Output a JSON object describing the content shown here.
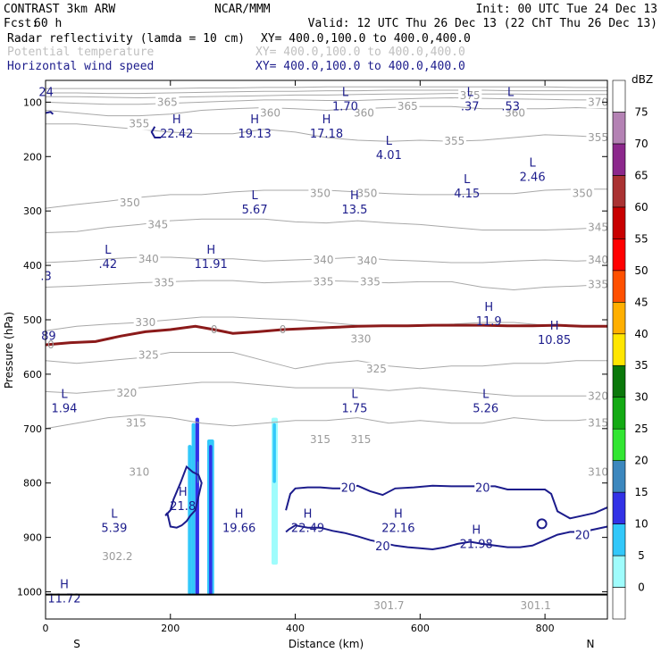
{
  "header": {
    "model": "CONTRAST  3km ARW",
    "org": "NCAR/MMM",
    "init": "Init: 00 UTC Tue 24 Dec 13",
    "fcst_label": "Fcst:",
    "fcst_value": "60 h",
    "valid": "Valid: 12 UTC Thu 26 Dec 13 (22 ChT Thu 26 Dec 13)",
    "fields": [
      {
        "name": "Radar reflectivity (lamda = 10 cm)",
        "xy": "XY= 400.0,100.0 to 400.0,400.0",
        "color": "#000000"
      },
      {
        "name": "Potential temperature",
        "xy": "XY= 400.0,100.0 to 400.0,400.0",
        "color": "#c0c0c0"
      },
      {
        "name": "Horizontal wind speed",
        "xy": "XY= 400.0,100.0 to 400.0,400.0",
        "color": "#1c1c8c"
      }
    ]
  },
  "chart_data": {
    "type": "cross-section",
    "xlabel": "Distance (km)",
    "ylabel": "Pressure (hPa)",
    "xlim": [
      0,
      900
    ],
    "ylim": [
      1050,
      60
    ],
    "x_ticks": [
      0,
      200,
      400,
      600,
      800
    ],
    "y_ticks": [
      100,
      200,
      300,
      400,
      500,
      600,
      700,
      800,
      900,
      1000
    ],
    "end_labels": {
      "left": "S",
      "right": "N"
    },
    "theta_contours": [
      {
        "value": 315,
        "p": [
          700,
          690,
          680,
          675,
          680,
          690,
          695,
          690,
          685,
          685,
          680,
          690,
          685,
          690,
          690,
          680,
          685,
          685,
          680
        ]
      },
      {
        "value": 320,
        "p": [
          632,
          635,
          630,
          625,
          620,
          615,
          615,
          620,
          625,
          625,
          625,
          630,
          625,
          630,
          635,
          640,
          640,
          640,
          640
        ]
      },
      {
        "value": 325,
        "p": [
          575,
          580,
          575,
          570,
          560,
          560,
          560,
          575,
          590,
          580,
          575,
          585,
          590,
          585,
          585,
          580,
          580,
          575,
          575
        ]
      },
      {
        "value": 330,
        "p": [
          520,
          512,
          508,
          505,
          500,
          495,
          495,
          498,
          500,
          505,
          510,
          512,
          510,
          508,
          505,
          505,
          510,
          512,
          512
        ]
      },
      {
        "value": 335,
        "p": [
          440,
          438,
          435,
          432,
          430,
          428,
          428,
          432,
          430,
          428,
          430,
          432,
          430,
          430,
          440,
          445,
          440,
          438,
          435
        ]
      },
      {
        "value": 340,
        "p": [
          395,
          392,
          388,
          385,
          385,
          388,
          388,
          392,
          390,
          388,
          385,
          390,
          392,
          395,
          395,
          392,
          390,
          392,
          390
        ]
      },
      {
        "value": 345,
        "p": [
          340,
          338,
          330,
          325,
          318,
          315,
          315,
          315,
          320,
          322,
          318,
          322,
          325,
          330,
          335,
          335,
          335,
          333,
          330
        ]
      },
      {
        "value": 350,
        "p": [
          295,
          288,
          282,
          275,
          270,
          270,
          265,
          262,
          262,
          262,
          265,
          268,
          270,
          270,
          268,
          268,
          262,
          260,
          260
        ]
      },
      {
        "value": 355,
        "p": [
          140,
          140,
          145,
          150,
          155,
          158,
          158,
          150,
          155,
          165,
          170,
          172,
          170,
          172,
          170,
          165,
          160,
          162,
          165
        ]
      },
      {
        "value": 360,
        "p": [
          115,
          120,
          125,
          125,
          122,
          115,
          112,
          110,
          112,
          115,
          112,
          110,
          108,
          108,
          112,
          112,
          112,
          110,
          112
        ]
      },
      {
        "value": 365,
        "p": [
          100,
          102,
          104,
          104,
          102,
          100,
          98,
          96,
          96,
          97,
          97,
          95,
          93,
          92,
          93,
          94,
          95,
          96,
          96
        ]
      },
      {
        "value": 370,
        "p": [
          90,
          90,
          91,
          92,
          91,
          90,
          89,
          88,
          87,
          87,
          86,
          85,
          85,
          84,
          85,
          85,
          86,
          86,
          86
        ]
      },
      {
        "value": 375,
        "p": [
          83,
          83,
          84,
          84,
          83,
          82,
          81,
          80,
          80,
          79,
          79,
          78,
          78,
          78,
          78,
          79,
          79,
          79,
          79
        ]
      },
      {
        "value": 380,
        "p": [
          75,
          75,
          75,
          75,
          75,
          74,
          74,
          73,
          73,
          72,
          72,
          72,
          72,
          72,
          72,
          72,
          72,
          73,
          73
        ]
      }
    ],
    "theta_labels": [
      {
        "text": "365",
        "x": 195,
        "p": 100
      },
      {
        "text": "360",
        "x": 360,
        "p": 120
      },
      {
        "text": "360",
        "x": 510,
        "p": 120
      },
      {
        "text": "365",
        "x": 580,
        "p": 108
      },
      {
        "text": "375",
        "x": 680,
        "p": 88
      },
      {
        "text": "360",
        "x": 752,
        "p": 120
      },
      {
        "text": "370",
        "x": 885,
        "p": 100
      },
      {
        "text": "355",
        "x": 150,
        "p": 140
      },
      {
        "text": "355",
        "x": 655,
        "p": 172
      },
      {
        "text": "355",
        "x": 885,
        "p": 165
      },
      {
        "text": "350",
        "x": 135,
        "p": 285
      },
      {
        "text": "350",
        "x": 440,
        "p": 268
      },
      {
        "text": "350",
        "x": 515,
        "p": 268
      },
      {
        "text": "350",
        "x": 860,
        "p": 268
      },
      {
        "text": "345",
        "x": 180,
        "p": 325
      },
      {
        "text": "345",
        "x": 885,
        "p": 330
      },
      {
        "text": "340",
        "x": 165,
        "p": 388
      },
      {
        "text": "340",
        "x": 445,
        "p": 390
      },
      {
        "text": "340",
        "x": 515,
        "p": 392
      },
      {
        "text": "340",
        "x": 885,
        "p": 390
      },
      {
        "text": "335",
        "x": 190,
        "p": 432
      },
      {
        "text": "335",
        "x": 445,
        "p": 430
      },
      {
        "text": "335",
        "x": 520,
        "p": 430
      },
      {
        "text": "335",
        "x": 885,
        "p": 435
      },
      {
        "text": "330",
        "x": 160,
        "p": 505
      },
      {
        "text": "330",
        "x": 505,
        "p": 535
      },
      {
        "text": "325",
        "x": 165,
        "p": 565
      },
      {
        "text": "325",
        "x": 530,
        "p": 590
      },
      {
        "text": "320",
        "x": 130,
        "p": 635
      },
      {
        "text": "320",
        "x": 885,
        "p": 640
      },
      {
        "text": "315",
        "x": 145,
        "p": 690
      },
      {
        "text": "315",
        "x": 440,
        "p": 720
      },
      {
        "text": "315",
        "x": 505,
        "p": 720
      },
      {
        "text": "315",
        "x": 885,
        "p": 690
      },
      {
        "text": "310",
        "x": 150,
        "p": 780
      },
      {
        "text": "310",
        "x": 885,
        "p": 780
      },
      {
        "text": "302.2",
        "x": 115,
        "p": 935
      },
      {
        "text": "301.7",
        "x": 550,
        "p": 1025
      },
      {
        "text": "301.1",
        "x": 785,
        "p": 1025
      }
    ],
    "tropopause_line": {
      "color": "#8b1a1a",
      "label": "0",
      "x": [
        0,
        40,
        80,
        120,
        160,
        200,
        240,
        270,
        300,
        340,
        380,
        420,
        460,
        500,
        540,
        580,
        620,
        660,
        700,
        740,
        780,
        820,
        860,
        900
      ],
      "p": [
        546,
        542,
        540,
        530,
        522,
        518,
        512,
        518,
        525,
        522,
        518,
        516,
        514,
        512,
        511,
        511,
        510,
        510,
        510,
        511,
        511,
        510,
        512,
        512
      ]
    },
    "wind_20_contour": {
      "color": "#1c1c8c",
      "label": "20",
      "segments": [
        {
          "x": [
            195,
            200,
            210,
            218,
            226,
            232,
            240,
            246,
            250,
            245,
            236,
            226,
            216,
            205,
            200,
            192,
            195
          ],
          "p": [
            855,
            880,
            882,
            878,
            870,
            860,
            850,
            820,
            800,
            785,
            780,
            770,
            800,
            830,
            850,
            860,
            855
          ]
        },
        {
          "x": [
            385,
            392,
            400,
            420,
            440,
            460,
            480,
            500,
            520,
            540,
            560,
            590,
            620,
            650,
            680,
            700,
            720,
            740,
            760,
            780,
            800,
            810,
            820,
            840,
            860,
            880,
            900
          ],
          "p": [
            850,
            820,
            810,
            808,
            808,
            810,
            810,
            805,
            815,
            822,
            810,
            808,
            805,
            806,
            806,
            806,
            806,
            812,
            812,
            812,
            812,
            820,
            852,
            865,
            860,
            855,
            845
          ]
        },
        {
          "x": [
            385,
            390,
            400,
            420,
            440,
            460,
            480,
            500,
            520,
            540,
            560,
            580,
            600,
            620,
            640,
            660,
            680,
            700,
            720,
            740,
            760,
            780,
            800,
            820,
            840,
            860,
            880,
            900
          ],
          "p": [
            890,
            885,
            878,
            882,
            882,
            888,
            892,
            898,
            905,
            910,
            915,
            918,
            920,
            922,
            918,
            912,
            908,
            912,
            915,
            918,
            918,
            915,
            905,
            895,
            890,
            890,
            885,
            880
          ]
        }
      ],
      "labels": [
        {
          "text": "20",
          "x": 485,
          "p": 808
        },
        {
          "text": "20",
          "x": 700,
          "p": 808
        },
        {
          "text": "20",
          "x": 540,
          "p": 915
        },
        {
          "text": "20",
          "x": 860,
          "p": 895
        }
      ]
    },
    "extrema": [
      {
        "type": "H",
        "value": "22.42",
        "x": 210,
        "p": 145
      },
      {
        "type": "H",
        "value": "19.13",
        "x": 335,
        "p": 145
      },
      {
        "type": "H",
        "value": "17.18",
        "x": 450,
        "p": 145
      },
      {
        "type": "L",
        "value": "1.70",
        "x": 480,
        "p": 95
      },
      {
        "type": "L",
        "value": ".37",
        "x": 680,
        "p": 95
      },
      {
        "type": "L",
        "value": ".53",
        "x": 745,
        "p": 95
      },
      {
        "type": "L",
        "value": "4.01",
        "x": 550,
        "p": 185
      },
      {
        "type": "L",
        "value": "4.15",
        "x": 675,
        "p": 255
      },
      {
        "type": "L",
        "value": "2.46",
        "x": 780,
        "p": 225
      },
      {
        "type": "L",
        "value": "5.67",
        "x": 335,
        "p": 285
      },
      {
        "type": "H",
        "value": "13.5",
        "x": 495,
        "p": 285
      },
      {
        "type": "L",
        "value": ".42",
        "x": 100,
        "p": 385
      },
      {
        "type": "H",
        "value": "11.91",
        "x": 265,
        "p": 385
      },
      {
        "type": "H",
        "value": "11.9",
        "x": 710,
        "p": 490
      },
      {
        "type": "H",
        "value": "10.85",
        "x": 815,
        "p": 525
      },
      {
        "type": "L",
        "value": "1.94",
        "x": 30,
        "p": 650
      },
      {
        "type": "L",
        "value": "1.75",
        "x": 495,
        "p": 650
      },
      {
        "type": "L",
        "value": "5.26",
        "x": 705,
        "p": 650
      },
      {
        "type": "H",
        "value": "21.8",
        "x": 220,
        "p": 830
      },
      {
        "type": "L",
        "value": "5.39",
        "x": 110,
        "p": 870
      },
      {
        "type": "H",
        "value": "19.66",
        "x": 310,
        "p": 870
      },
      {
        "type": "H",
        "value": "22.49",
        "x": 420,
        "p": 870
      },
      {
        "type": "H",
        "value": "22.16",
        "x": 565,
        "p": 870
      },
      {
        "type": "H",
        "value": "21.98",
        "x": 690,
        "p": 900
      },
      {
        "type": "H",
        "value": "11.72",
        "x": 30,
        "p": 1000
      }
    ],
    "edge_labels": [
      {
        "text": "24",
        "x": 8,
        "p": 82
      },
      {
        "text": ".3",
        "x": 8,
        "p": 420
      },
      {
        "text": "89",
        "x": 12,
        "p": 530
      }
    ],
    "reflectivity_cells": [
      {
        "x0": 228,
        "x1": 234,
        "p0": 730,
        "p1": 1005,
        "dbz": 10
      },
      {
        "x0": 234,
        "x1": 240,
        "p0": 690,
        "p1": 1005,
        "dbz": 10
      },
      {
        "x0": 240,
        "x1": 246,
        "p0": 680,
        "p1": 1005,
        "dbz": 15
      },
      {
        "x0": 243,
        "x1": 245,
        "p0": 760,
        "p1": 800,
        "dbz": 20
      },
      {
        "x0": 259,
        "x1": 270,
        "p0": 720,
        "p1": 1005,
        "dbz": 10
      },
      {
        "x0": 262,
        "x1": 267,
        "p0": 730,
        "p1": 1005,
        "dbz": 15
      },
      {
        "x0": 362,
        "x1": 372,
        "p0": 680,
        "p1": 950,
        "dbz": 5
      },
      {
        "x0": 364,
        "x1": 369,
        "p0": 690,
        "p1": 800,
        "dbz": 10
      }
    ],
    "surface_line": {
      "p": 1005
    },
    "colorbar": {
      "unit": "dBZ",
      "levels": [
        "0",
        "5",
        "10",
        "15",
        "20",
        "25",
        "30",
        "35",
        "40",
        "45",
        "50",
        "55",
        "60",
        "65",
        "70",
        "75"
      ],
      "colors": [
        "#ffffff",
        "#9ffcfc",
        "#32c8fa",
        "#3232e6",
        "#3c87be",
        "#32e632",
        "#14aa14",
        "#0a780a",
        "#ffe600",
        "#ffaf00",
        "#ff5000",
        "#ff0000",
        "#c80000",
        "#aa3232",
        "#8c288c",
        "#b482b4",
        "#ffffff"
      ]
    }
  }
}
